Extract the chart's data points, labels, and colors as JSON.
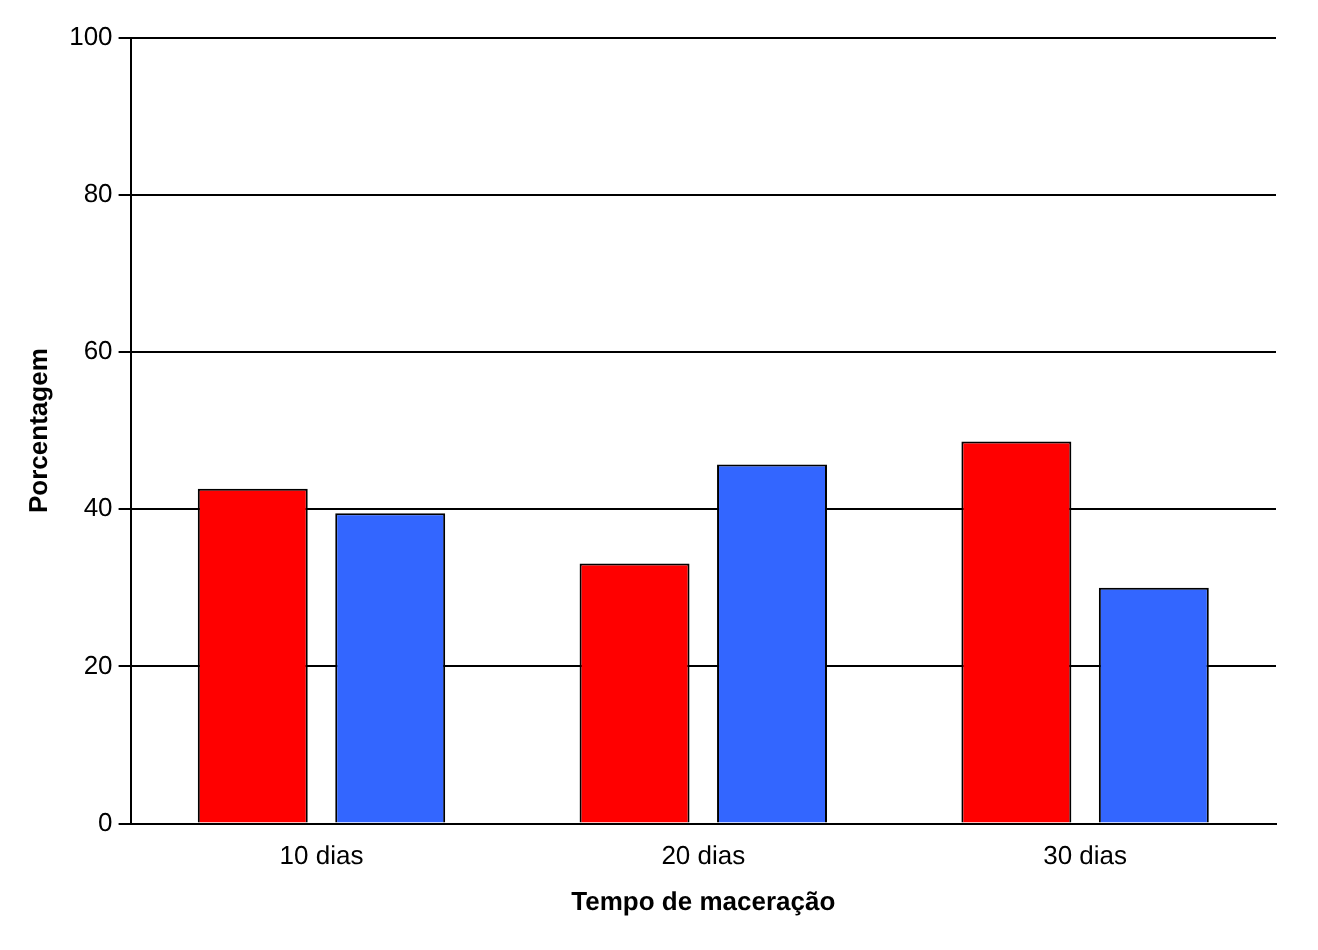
{
  "chart_data": {
    "type": "bar",
    "xlabel": "Tempo de maceração",
    "ylabel": "Porcentagem",
    "categories": [
      "10 dias",
      "20 dias",
      "30 dias"
    ],
    "series": [
      {
        "color": "#ff0000",
        "values": [
          42.6,
          33.1,
          48.6
        ]
      },
      {
        "color": "#3366ff",
        "values": [
          39.5,
          45.7,
          30.0
        ]
      }
    ],
    "ylim": [
      0,
      100
    ],
    "yticks": [
      0,
      20,
      40,
      60,
      80,
      100
    ],
    "grid": "y"
  }
}
